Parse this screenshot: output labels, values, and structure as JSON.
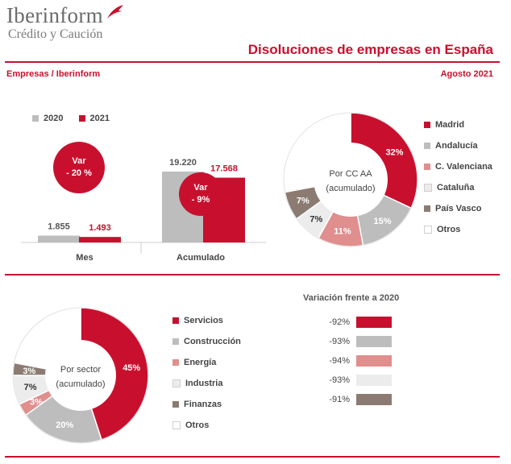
{
  "header": {
    "logo_name": "Iberinform",
    "logo_sub": "Crédito y Caución",
    "title": "Disoluciones de empresas en España",
    "source": "Empresas / Iberinform",
    "date": "Agosto 2021"
  },
  "colors": {
    "red": "#c8102e",
    "gray": "#bdbdbd",
    "pink": "#e08e8e",
    "light": "#ececec",
    "brown": "#8c7b72",
    "white": "#ffffff",
    "text": "#444444"
  },
  "chart_data": [
    {
      "type": "bar",
      "title": "",
      "categories": [
        "Mes",
        "Acumulado"
      ],
      "series": [
        {
          "name": "2020",
          "values": [
            1855,
            19220
          ],
          "labels": [
            "1.855",
            "19.220"
          ],
          "color": "#bdbdbd"
        },
        {
          "name": "2021",
          "values": [
            1493,
            17568
          ],
          "labels": [
            "1.493",
            "17.568"
          ],
          "color": "#c8102e"
        }
      ],
      "variation": [
        {
          "category": "Mes",
          "label": "Var",
          "value": "- 20 %"
        },
        {
          "category": "Acumulado",
          "label": "Var",
          "value": "- 9%"
        }
      ]
    },
    {
      "type": "pie",
      "center_label": [
        "Por CC AA",
        "(acumulado)"
      ],
      "slices": [
        {
          "name": "Madrid",
          "value": 32,
          "label": "32%",
          "color": "#c8102e"
        },
        {
          "name": "Andalucía",
          "value": 15,
          "label": "15%",
          "color": "#bdbdbd"
        },
        {
          "name": "C. Valenciana",
          "value": 11,
          "label": "11%",
          "color": "#e08e8e"
        },
        {
          "name": "Cataluña",
          "value": 7,
          "label": "7%",
          "color": "#ececec"
        },
        {
          "name": "País Vasco",
          "value": 7,
          "label": "7%",
          "color": "#8c7b72"
        },
        {
          "name": "Otros",
          "value": 28,
          "label": "",
          "color": "#ffffff"
        }
      ]
    },
    {
      "type": "pie",
      "center_label": [
        "Por sector",
        "(acumulado)"
      ],
      "slices": [
        {
          "name": "Servicios",
          "value": 45,
          "label": "45%",
          "color": "#c8102e"
        },
        {
          "name": "Construcción",
          "value": 20,
          "label": "20%",
          "color": "#bdbdbd"
        },
        {
          "name": "Energía",
          "value": 3,
          "label": "3%",
          "color": "#e08e8e"
        },
        {
          "name": "Industria",
          "value": 7,
          "label": "7%",
          "color": "#ececec"
        },
        {
          "name": "Finanzas",
          "value": 3,
          "label": "3%",
          "color": "#8c7b72"
        },
        {
          "name": "Otros",
          "value": 22,
          "label": "",
          "color": "#ffffff"
        }
      ]
    },
    {
      "type": "table",
      "title": "Variación frente a 2020",
      "rows": [
        {
          "value": "-92%",
          "color": "#c8102e"
        },
        {
          "value": "-93%",
          "color": "#bdbdbd"
        },
        {
          "value": "-94%",
          "color": "#e08e8e"
        },
        {
          "value": "-93%",
          "color": "#ececec"
        },
        {
          "value": "-91%",
          "color": "#8c7b72"
        }
      ]
    }
  ]
}
